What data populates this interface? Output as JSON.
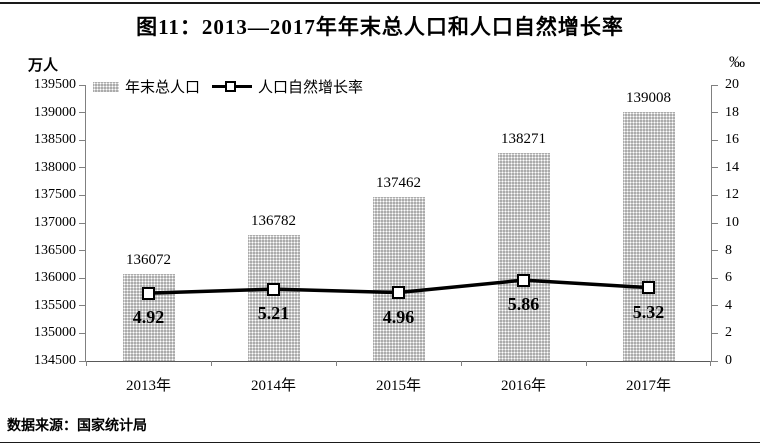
{
  "page": {
    "source": "数据来源：国家统计局"
  },
  "chart_data": {
    "type": "bar+line",
    "title": "图11：2013—2017年年末总人口和人口自然增长率",
    "categories": [
      "2013年",
      "2014年",
      "2015年",
      "2016年",
      "2017年"
    ],
    "series": [
      {
        "name": "年末总人口",
        "type": "bar",
        "axis": "left",
        "unit": "万人",
        "values": [
          136072,
          136782,
          137462,
          138271,
          139008
        ]
      },
      {
        "name": "人口自然增长率",
        "type": "line",
        "axis": "right",
        "unit": "‰",
        "values": [
          4.92,
          5.21,
          4.96,
          5.86,
          5.32
        ]
      }
    ],
    "left_axis": {
      "unit": "万人",
      "min": 134500,
      "max": 139500,
      "step": 500,
      "ticks": [
        134500,
        135000,
        135500,
        136000,
        136500,
        137000,
        137500,
        138000,
        138500,
        139000,
        139500
      ]
    },
    "right_axis": {
      "unit": "‰",
      "min": 0,
      "max": 20,
      "step": 2,
      "ticks": [
        0,
        2,
        4,
        6,
        8,
        10,
        12,
        14,
        16,
        18,
        20
      ]
    },
    "legend_position": "top-left",
    "grid": false,
    "colors": {
      "bar_fill": "#ababab",
      "bar_dot": "#ffffff",
      "line": "#000000",
      "axis": "#808080",
      "text": "#000000"
    }
  }
}
